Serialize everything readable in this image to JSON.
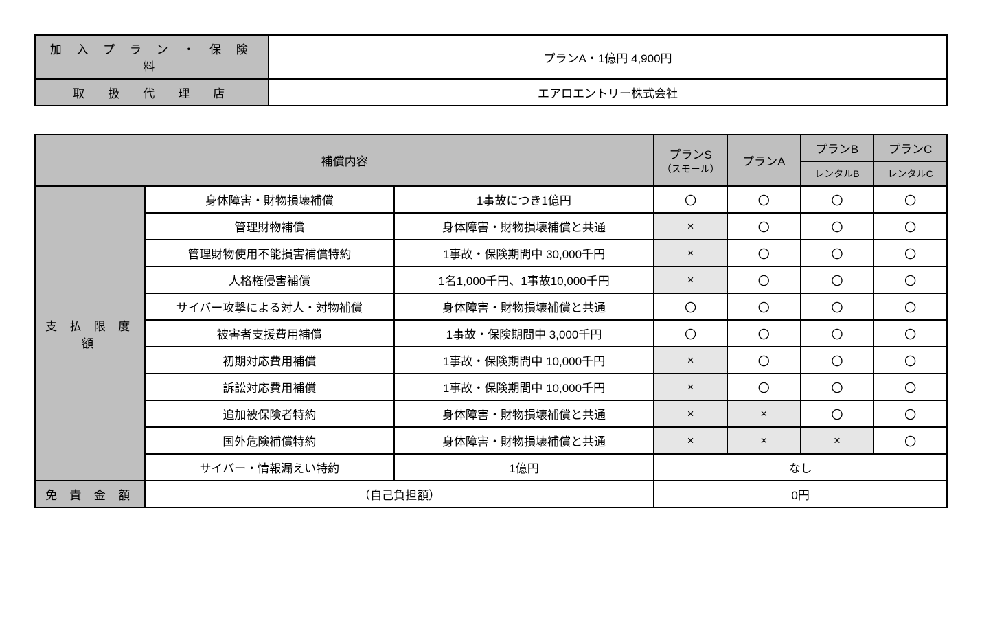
{
  "header": {
    "plan_label": "加 入 プ ラ ン ・ 保 険 料",
    "plan_value": "プランA・1億円  4,900円",
    "agency_label": "取　扱　代　理　店",
    "agency_value": "エアロエントリー株式会社"
  },
  "table": {
    "coverage_header": "補償内容",
    "plan_s_label": "プランS",
    "plan_s_sublabel": "（スモール）",
    "plan_a_label": "プランA",
    "plan_b_label": "プランB",
    "plan_b_sublabel": "レンタルB",
    "plan_c_label": "プランC",
    "plan_c_sublabel": "レンタルC",
    "payment_limit_label": "支 払 限 度 額",
    "deductible_label": "免 責 金 額",
    "deductible_note": "（自己負担額）",
    "deductible_value": "0円",
    "none_label": "なし",
    "mark_yes": "〇",
    "mark_no": "×",
    "rows": [
      {
        "name": "身体障害・財物損壊補償",
        "amount": "1事故につき1億円",
        "s": "yes",
        "a": "yes",
        "b": "yes",
        "c": "yes"
      },
      {
        "name": "管理財物補償",
        "amount": "身体障害・財物損壊補償と共通",
        "s": "no",
        "a": "yes",
        "b": "yes",
        "c": "yes"
      },
      {
        "name": "管理財物使用不能損害補償特約",
        "amount": "1事故・保険期間中 30,000千円",
        "s": "no",
        "a": "yes",
        "b": "yes",
        "c": "yes"
      },
      {
        "name": "人格権侵害補償",
        "amount": "1名1,000千円、1事故10,000千円",
        "s": "no",
        "a": "yes",
        "b": "yes",
        "c": "yes"
      },
      {
        "name": "サイバー攻撃による対人・対物補償",
        "amount": "身体障害・財物損壊補償と共通",
        "s": "yes",
        "a": "yes",
        "b": "yes",
        "c": "yes"
      },
      {
        "name": "被害者支援費用補償",
        "amount": "1事故・保険期間中 3,000千円",
        "s": "yes",
        "a": "yes",
        "b": "yes",
        "c": "yes"
      },
      {
        "name": "初期対応費用補償",
        "amount": "1事故・保険期間中 10,000千円",
        "s": "no",
        "a": "yes",
        "b": "yes",
        "c": "yes"
      },
      {
        "name": "訴訟対応費用補償",
        "amount": "1事故・保険期間中 10,000千円",
        "s": "no",
        "a": "yes",
        "b": "yes",
        "c": "yes"
      },
      {
        "name": "追加被保険者特約",
        "amount": "身体障害・財物損壊補償と共通",
        "s": "no",
        "a": "no",
        "b": "yes",
        "c": "yes"
      },
      {
        "name": "国外危険補償特約",
        "amount": "身体障害・財物損壊補償と共通",
        "s": "no",
        "a": "no",
        "b": "no",
        "c": "yes"
      },
      {
        "name": "サイバー・情報漏えい特約",
        "amount": "1億円",
        "merged": true
      }
    ]
  },
  "colors": {
    "header_bg": "#bfbfbf",
    "shaded_cell": "#e6e6e6",
    "border": "#000000",
    "background": "#ffffff"
  }
}
